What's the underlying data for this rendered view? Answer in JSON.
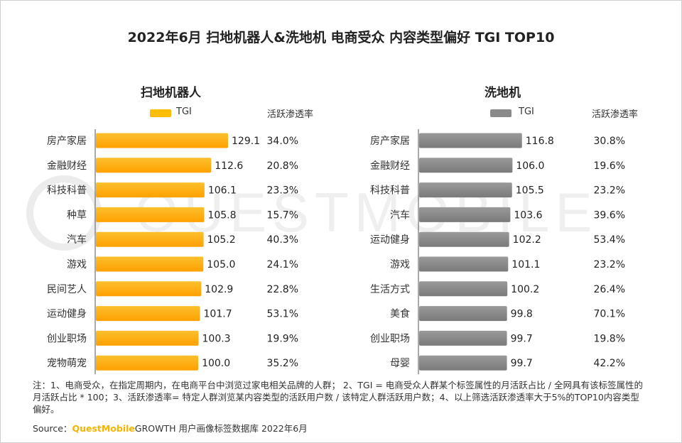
{
  "title": "2022年6月 扫地机器人&洗地机 电商受众 内容类型偏好 TGI TOP10",
  "watermark": "QUESTMOBILE",
  "legend": {
    "tgi": "TGI",
    "rate": "活跃渗透率"
  },
  "colors": {
    "left_bar": "#fbbd08",
    "right_bar": "#8a8a8a",
    "brand": "#f5b400"
  },
  "chart_data": [
    {
      "type": "bar",
      "orientation": "horizontal",
      "title": "扫地机器人",
      "categories": [
        "房产家居",
        "金融财经",
        "科技科普",
        "种草",
        "汽车",
        "游戏",
        "民间艺人",
        "运动健身",
        "创业职场",
        "宠物萌宠"
      ],
      "series": [
        {
          "name": "TGI",
          "values": [
            129.1,
            112.6,
            106.1,
            105.8,
            105.2,
            105.0,
            102.9,
            101.7,
            100.3,
            100.0
          ]
        }
      ],
      "value_labels": [
        "129.1",
        "112.6",
        "106.1",
        "105.8",
        "105.2",
        "105.0",
        "102.9",
        "101.7",
        "100.3",
        "100.0"
      ],
      "rates": [
        "34.0%",
        "20.8%",
        "23.3%",
        "15.7%",
        "40.3%",
        "24.1%",
        "22.8%",
        "53.1%",
        "19.9%",
        "35.2%"
      ],
      "xlim": [
        0,
        129.1
      ]
    },
    {
      "type": "bar",
      "orientation": "horizontal",
      "title": "洗地机",
      "categories": [
        "房产家居",
        "金融财经",
        "科技科普",
        "汽车",
        "运动健身",
        "游戏",
        "生活方式",
        "美食",
        "创业职场",
        "母婴"
      ],
      "series": [
        {
          "name": "TGI",
          "values": [
            116.8,
            106.0,
            105.5,
            103.6,
            102.2,
            101.1,
            100.2,
            99.8,
            99.7,
            99.7
          ]
        }
      ],
      "value_labels": [
        "116.8",
        "106.0",
        "105.5",
        "103.6",
        "102.2",
        "101.1",
        "100.2",
        "99.8",
        "99.7",
        "99.7"
      ],
      "rates": [
        "30.8%",
        "19.6%",
        "23.2%",
        "39.6%",
        "53.4%",
        "23.2%",
        "26.4%",
        "70.1%",
        "19.8%",
        "42.2%"
      ],
      "xlim": [
        0,
        129.1
      ]
    }
  ],
  "note": "注：1、电商受众，在指定周期内，在电商平台中浏览过家电相关品牌的人群；  2、TGI = 电商受众人群某个标签属性的月活跃占比 / 全网具有该标签属性的月活跃占比 * 100；3、活跃渗透率= 特定人群浏览某内容类型的活跃用户数 / 该特定人群活跃用户数；4、以上筛选活跃渗透率大于5%的TOP10内容类型偏好。",
  "source": {
    "prefix": "Source：",
    "brand": "QuestMobile",
    "suffix": "GROWTH 用户画像标签数据库 2022年6月"
  }
}
